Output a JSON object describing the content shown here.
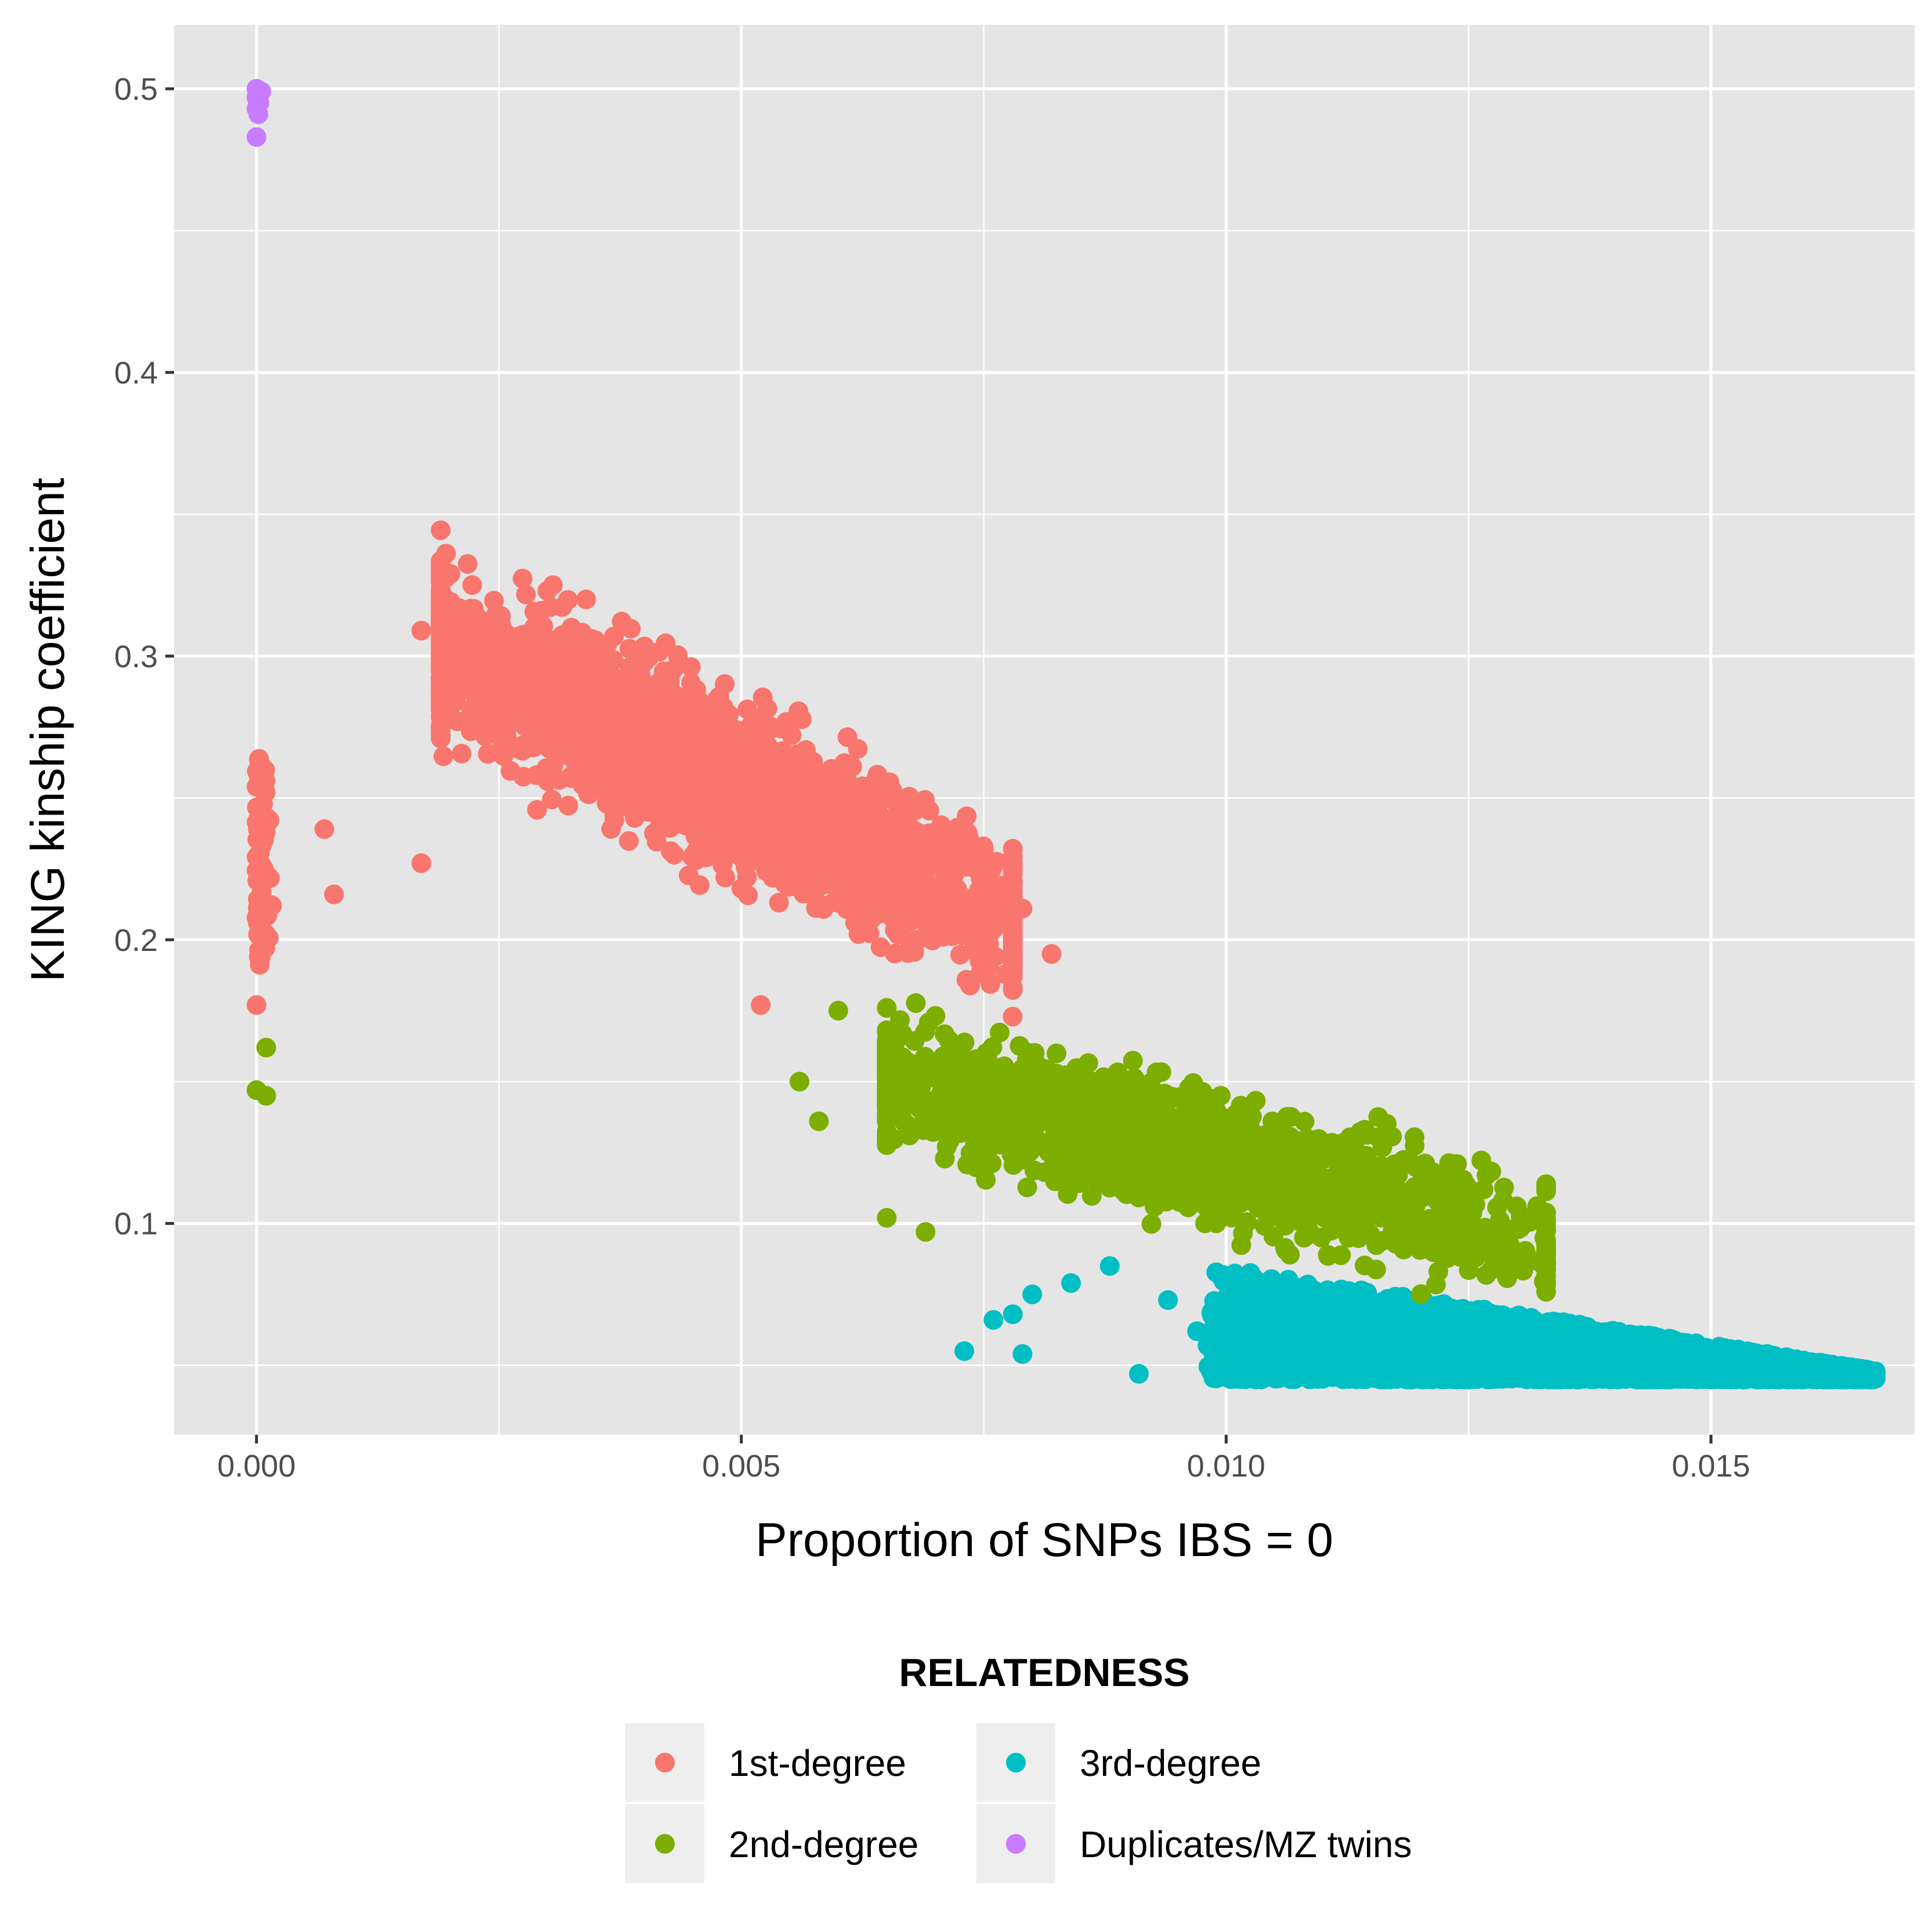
{
  "chart_data": {
    "type": "scatter",
    "title": "",
    "xlabel": "Proportion of SNPs IBS = 0",
    "ylabel": "KING kinship coefficient",
    "xlim": [
      -0.00085,
      0.0171
    ],
    "ylim": [
      0.0255,
      0.5225
    ],
    "x_ticks": [
      0.0,
      0.005,
      0.01,
      0.015
    ],
    "x_tick_labels": [
      "0.000",
      "0.005",
      "0.010",
      "0.015"
    ],
    "y_ticks": [
      0.1,
      0.2,
      0.3,
      0.4,
      0.5
    ],
    "y_tick_labels": [
      "0.1",
      "0.2",
      "0.3",
      "0.4",
      "0.5"
    ],
    "grid": true,
    "panel_background": "#e5e5e5",
    "gridline_color": "#ffffff",
    "legend": {
      "title": "RELATEDNESS",
      "placement": "bottom",
      "columns": 2,
      "key_background": "#eeeeee"
    },
    "series": [
      {
        "name": "1st-degree",
        "color": "#F8766D",
        "clusters": [
          {
            "x_range": [
              0.0,
              0.0002
            ],
            "y_range": [
              0.19,
              0.264
            ],
            "count": 70
          },
          {
            "x_range": [
              0.0019,
              0.0078
            ],
            "y_center_at_x_min": 0.305,
            "y_center_at_x_max": 0.205,
            "spread": 0.015,
            "count": 2600
          }
        ],
        "points": [
          {
            "x": 0.0,
            "y": 0.177
          },
          {
            "x": 0.0007,
            "y": 0.239
          },
          {
            "x": 0.0008,
            "y": 0.216
          },
          {
            "x": 0.0017,
            "y": 0.309
          },
          {
            "x": 0.0017,
            "y": 0.227
          },
          {
            "x": 0.0019,
            "y": 0.295
          },
          {
            "x": 0.002,
            "y": 0.329
          },
          {
            "x": 0.003,
            "y": 0.323
          },
          {
            "x": 0.0034,
            "y": 0.32
          },
          {
            "x": 0.0052,
            "y": 0.177
          },
          {
            "x": 0.0079,
            "y": 0.211
          },
          {
            "x": 0.0082,
            "y": 0.195
          },
          {
            "x": 0.0075,
            "y": 0.228
          }
        ]
      },
      {
        "name": "2nd-degree",
        "color": "#7CAE00",
        "clusters": [
          {
            "x_range": [
              0.0065,
              0.0133
            ],
            "y_center_at_x_min": 0.15,
            "y_center_at_x_max": 0.095,
            "spread": 0.012,
            "count": 1500
          }
        ],
        "points": [
          {
            "x": 0.0,
            "y": 0.147
          },
          {
            "x": 0.0001,
            "y": 0.162
          },
          {
            "x": 0.0001,
            "y": 0.145
          },
          {
            "x": 0.0056,
            "y": 0.15
          },
          {
            "x": 0.0058,
            "y": 0.136
          },
          {
            "x": 0.006,
            "y": 0.175
          },
          {
            "x": 0.0065,
            "y": 0.102
          },
          {
            "x": 0.0069,
            "y": 0.097
          },
          {
            "x": 0.0065,
            "y": 0.176
          }
        ]
      },
      {
        "name": "3rd-degree",
        "color": "#00BFC4",
        "clusters": [
          {
            "x_range": [
              0.0098,
              0.0167
            ],
            "y_top_at_x_min": 0.085,
            "y_top_at_x_max": 0.048,
            "y_floor": 0.045,
            "count": 3500
          }
        ],
        "points": [
          {
            "x": 0.0073,
            "y": 0.055
          },
          {
            "x": 0.0076,
            "y": 0.066
          },
          {
            "x": 0.0078,
            "y": 0.068
          },
          {
            "x": 0.0079,
            "y": 0.054
          },
          {
            "x": 0.008,
            "y": 0.075
          },
          {
            "x": 0.0084,
            "y": 0.079
          },
          {
            "x": 0.0088,
            "y": 0.085
          },
          {
            "x": 0.0091,
            "y": 0.047
          },
          {
            "x": 0.0094,
            "y": 0.073
          },
          {
            "x": 0.0097,
            "y": 0.062
          },
          {
            "x": 0.0108,
            "y": 0.047
          },
          {
            "x": 0.0167,
            "y": 0.047
          }
        ]
      },
      {
        "name": "Duplicates/MZ twins",
        "color": "#C77CFF",
        "points": [
          {
            "x": 0.0,
            "y": 0.5
          },
          {
            "x": 5e-05,
            "y": 0.499
          },
          {
            "x": 0.0,
            "y": 0.497
          },
          {
            "x": 3e-05,
            "y": 0.495
          },
          {
            "x": 0.0,
            "y": 0.493
          },
          {
            "x": 2e-05,
            "y": 0.491
          },
          {
            "x": 0.0,
            "y": 0.483
          }
        ]
      }
    ]
  }
}
